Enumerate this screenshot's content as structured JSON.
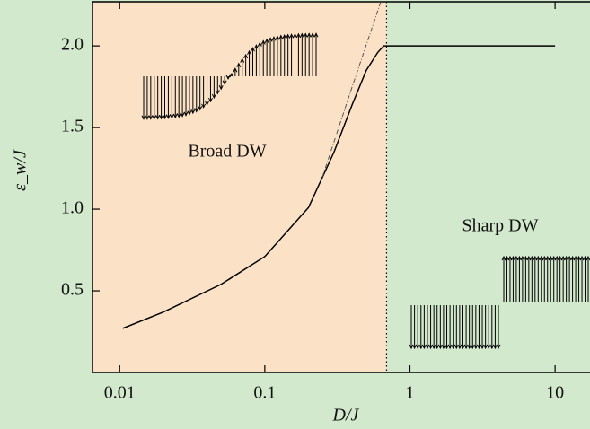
{
  "chart_data": {
    "type": "line",
    "annotations": [
      "Broad DW",
      "Sharp DW"
    ],
    "xlabel": "D/J",
    "ylabel": "ε_w/J",
    "xscale": "log",
    "xlim": [
      0.0065,
      17.4
    ],
    "ylim": [
      0,
      2.27
    ],
    "xticks": [
      0.01,
      0.1,
      1,
      10
    ],
    "yticks": [
      0.5,
      {
        "value": 1,
        "label": "1.0"
      },
      1.5,
      {
        "value": 2,
        "label": "2.0"
      }
    ],
    "boundary_x": 0.69,
    "series": [
      {
        "color": "#000000",
        "style": "solid",
        "x": [
          0.0105,
          0.02,
          0.05,
          0.1,
          0.2,
          0.3,
          0.4,
          0.5,
          0.6,
          0.66,
          10
        ],
        "values": [
          0.27,
          0.37,
          0.54,
          0.71,
          1.01,
          1.35,
          1.64,
          1.85,
          1.96,
          2.0,
          2.0
        ]
      },
      {
        "color": "#555555",
        "style": "dashed",
        "x": [
          0.25,
          0.4,
          0.63
        ],
        "values": [
          1.2,
          1.75,
          2.27
        ]
      }
    ]
  }
}
